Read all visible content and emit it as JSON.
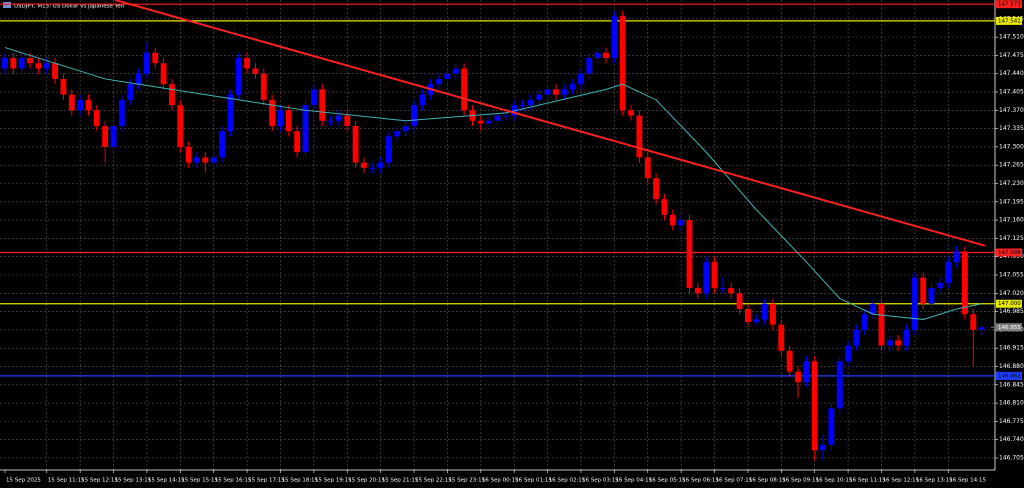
{
  "chart_data": {
    "type": "candlestick",
    "title": "USDJPY, M15: US Dollar vs Japanese Yen",
    "ylim": [
      146.682,
      147.581
    ],
    "xlim": [
      -0.6,
      118.6
    ],
    "grid": true,
    "up_color": "#0000ff",
    "down_color": "#ff0000",
    "yticks": [
      147.545,
      {
        "value": 147.51,
        "label": "147.510"
      },
      147.475,
      {
        "value": 147.44,
        "label": "147.440"
      },
      147.405,
      {
        "value": 147.37,
        "label": "147.370"
      },
      147.335,
      {
        "value": 147.3,
        "label": "147.300"
      },
      147.265,
      {
        "value": 147.23,
        "label": "147.230"
      },
      147.195,
      {
        "value": 147.16,
        "label": "147.160"
      },
      147.125,
      {
        "value": 147.09,
        "label": "147.090"
      },
      147.055,
      {
        "value": 147.02,
        "label": "147.020"
      },
      146.985,
      {
        "value": 146.95,
        "label": "146.950"
      },
      146.915,
      {
        "value": 146.88,
        "label": "146.880"
      },
      146.845,
      {
        "value": 146.81,
        "label": "146.810"
      },
      146.775,
      {
        "value": 146.74,
        "label": "146.740"
      },
      146.705
    ],
    "xticks": [
      {
        "value": 0,
        "label": "15 Sep 2025"
      },
      {
        "value": 5,
        "label": "15 Sep 11:15"
      },
      {
        "value": 9,
        "label": "15 Sep 12:15"
      },
      {
        "value": 13,
        "label": "15 Sep 13:15"
      },
      {
        "value": 17,
        "label": "15 Sep 14:15"
      },
      {
        "value": 21,
        "label": "15 Sep 15:15"
      },
      {
        "value": 25,
        "label": "15 Sep 16:15"
      },
      {
        "value": 29,
        "label": "15 Sep 17:15"
      },
      {
        "value": 33,
        "label": "15 Sep 18:15"
      },
      {
        "value": 37,
        "label": "15 Sep 19:15"
      },
      {
        "value": 41,
        "label": "15 Sep 20:15"
      },
      {
        "value": 45,
        "label": "15 Sep 21:15"
      },
      {
        "value": 49,
        "label": "15 Sep 22:15"
      },
      {
        "value": 53,
        "label": "15 Sep 23:15"
      },
      {
        "value": 57,
        "label": "16 Sep 00:15"
      },
      {
        "value": 61,
        "label": "16 Sep 01:15"
      },
      {
        "value": 65,
        "label": "16 Sep 02:15"
      },
      {
        "value": 69,
        "label": "16 Sep 03:15"
      },
      {
        "value": 73,
        "label": "16 Sep 04:15"
      },
      {
        "value": 77,
        "label": "16 Sep 05:15"
      },
      {
        "value": 81,
        "label": "16 Sep 06:15"
      },
      {
        "value": 85,
        "label": "16 Sep 07:15"
      },
      {
        "value": 89,
        "label": "16 Sep 08:15"
      },
      {
        "value": 93,
        "label": "16 Sep 09:15"
      },
      {
        "value": 97,
        "label": "16 Sep 10:15"
      },
      {
        "value": 101,
        "label": "16 Sep 11:15"
      },
      {
        "value": 105,
        "label": "16 Sep 12:15"
      },
      {
        "value": 109,
        "label": "16 Sep 13:15"
      },
      {
        "value": 113,
        "label": "16 Sep 14:15"
      }
    ],
    "candles": [
      [
        147.45,
        147.48,
        147.44,
        147.47
      ],
      [
        147.47,
        147.48,
        147.44,
        147.45
      ],
      [
        147.45,
        147.48,
        147.44,
        147.47
      ],
      [
        147.47,
        147.48,
        147.45,
        147.46
      ],
      [
        147.46,
        147.47,
        147.44,
        147.45
      ],
      [
        147.45,
        147.47,
        147.44,
        147.46
      ],
      [
        147.46,
        147.47,
        147.42,
        147.43
      ],
      [
        147.43,
        147.44,
        147.39,
        147.4
      ],
      [
        147.4,
        147.41,
        147.36,
        147.37
      ],
      [
        147.37,
        147.4,
        147.36,
        147.39
      ],
      [
        147.39,
        147.4,
        147.36,
        147.37
      ],
      [
        147.37,
        147.38,
        147.33,
        147.34
      ],
      [
        147.34,
        147.35,
        147.27,
        147.3
      ],
      [
        147.3,
        147.35,
        147.29,
        147.34
      ],
      [
        147.34,
        147.4,
        147.33,
        147.39
      ],
      [
        147.39,
        147.43,
        147.38,
        147.42
      ],
      [
        147.42,
        147.45,
        147.41,
        147.44
      ],
      [
        147.44,
        147.5,
        147.43,
        147.48
      ],
      [
        147.48,
        147.49,
        147.45,
        147.46
      ],
      [
        147.46,
        147.47,
        147.41,
        147.42
      ],
      [
        147.42,
        147.43,
        147.37,
        147.38
      ],
      [
        147.38,
        147.39,
        147.29,
        147.3
      ],
      [
        147.3,
        147.31,
        147.26,
        147.27
      ],
      [
        147.27,
        147.29,
        147.26,
        147.28
      ],
      [
        147.28,
        147.29,
        147.25,
        147.27
      ],
      [
        147.27,
        147.29,
        147.26,
        147.28
      ],
      [
        147.28,
        147.34,
        147.27,
        147.33
      ],
      [
        147.33,
        147.41,
        147.32,
        147.4
      ],
      [
        147.4,
        147.48,
        147.39,
        147.47
      ],
      [
        147.47,
        147.48,
        147.44,
        147.45
      ],
      [
        147.45,
        147.46,
        147.43,
        147.44
      ],
      [
        147.44,
        147.45,
        147.38,
        147.39
      ],
      [
        147.39,
        147.4,
        147.33,
        147.34
      ],
      [
        147.34,
        147.38,
        147.33,
        147.37
      ],
      [
        147.37,
        147.38,
        147.32,
        147.33
      ],
      [
        147.33,
        147.34,
        147.28,
        147.29
      ],
      [
        147.29,
        147.39,
        147.28,
        147.38
      ],
      [
        147.38,
        147.42,
        147.37,
        147.41
      ],
      [
        147.41,
        147.42,
        147.34,
        147.35
      ],
      [
        147.35,
        147.36,
        147.34,
        147.35
      ],
      [
        147.35,
        147.37,
        147.34,
        147.36
      ],
      [
        147.36,
        147.37,
        147.33,
        147.34
      ],
      [
        147.34,
        147.35,
        147.26,
        147.27
      ],
      [
        147.27,
        147.28,
        147.25,
        147.26
      ],
      [
        147.26,
        147.27,
        147.25,
        147.26
      ],
      [
        147.26,
        147.28,
        147.25,
        147.27
      ],
      [
        147.27,
        147.33,
        147.26,
        147.32
      ],
      [
        147.32,
        147.34,
        147.31,
        147.33
      ],
      [
        147.33,
        147.35,
        147.32,
        147.34
      ],
      [
        147.34,
        147.39,
        147.33,
        147.38
      ],
      [
        147.38,
        147.41,
        147.37,
        147.4
      ],
      [
        147.4,
        147.43,
        147.39,
        147.42
      ],
      [
        147.42,
        147.44,
        147.41,
        147.43
      ],
      [
        147.43,
        147.45,
        147.42,
        147.44
      ],
      [
        147.44,
        147.46,
        147.43,
        147.45
      ],
      [
        147.45,
        147.46,
        147.36,
        147.37
      ],
      [
        147.37,
        147.38,
        147.34,
        147.35
      ],
      [
        147.35,
        147.36,
        147.33,
        147.345
      ],
      [
        147.345,
        147.36,
        147.34,
        147.35
      ],
      [
        147.35,
        147.37,
        147.34,
        147.36
      ],
      [
        147.36,
        147.37,
        147.35,
        147.36
      ],
      [
        147.36,
        147.39,
        147.35,
        147.38
      ],
      [
        147.38,
        147.39,
        147.37,
        147.38
      ],
      [
        147.38,
        147.4,
        147.37,
        147.39
      ],
      [
        147.39,
        147.41,
        147.38,
        147.4
      ],
      [
        147.4,
        147.42,
        147.39,
        147.41
      ],
      [
        147.41,
        147.42,
        147.39,
        147.4
      ],
      [
        147.4,
        147.42,
        147.39,
        147.41
      ],
      [
        147.41,
        147.43,
        147.4,
        147.42
      ],
      [
        147.42,
        147.45,
        147.41,
        147.44
      ],
      [
        147.44,
        147.48,
        147.43,
        147.47
      ],
      [
        147.47,
        147.49,
        147.46,
        147.48
      ],
      [
        147.48,
        147.49,
        147.46,
        147.47
      ],
      [
        147.47,
        147.56,
        147.46,
        147.55
      ],
      [
        147.55,
        147.56,
        147.36,
        147.37
      ],
      [
        147.37,
        147.38,
        147.35,
        147.36
      ],
      [
        147.36,
        147.37,
        147.27,
        147.28
      ],
      [
        147.28,
        147.29,
        147.23,
        147.24
      ],
      [
        147.24,
        147.25,
        147.19,
        147.2
      ],
      [
        147.2,
        147.21,
        147.16,
        147.17
      ],
      [
        147.17,
        147.18,
        147.14,
        147.15
      ],
      [
        147.15,
        147.17,
        147.14,
        147.16
      ],
      [
        147.16,
        147.17,
        147.02,
        147.03
      ],
      [
        147.03,
        147.04,
        147.01,
        147.02
      ],
      [
        147.02,
        147.09,
        147.01,
        147.08
      ],
      [
        147.08,
        147.09,
        147.02,
        147.03
      ],
      [
        147.03,
        147.05,
        147.02,
        147.03
      ],
      [
        147.03,
        147.04,
        147.01,
        147.02
      ],
      [
        147.02,
        147.03,
        146.98,
        146.99
      ],
      [
        146.99,
        147.0,
        146.955,
        146.965
      ],
      [
        146.965,
        146.98,
        146.96,
        146.97
      ],
      [
        146.97,
        147.01,
        146.96,
        147.0
      ],
      [
        147.0,
        147.01,
        146.95,
        146.96
      ],
      [
        146.96,
        146.97,
        146.9,
        146.91
      ],
      [
        146.91,
        146.92,
        146.86,
        146.87
      ],
      [
        146.87,
        146.88,
        146.82,
        146.85
      ],
      [
        146.85,
        146.9,
        146.84,
        146.89
      ],
      [
        146.89,
        146.9,
        146.7,
        146.72
      ],
      [
        146.72,
        146.75,
        146.7,
        146.73
      ],
      [
        146.73,
        146.81,
        146.72,
        146.8
      ],
      [
        146.8,
        146.9,
        146.79,
        146.89
      ],
      [
        146.89,
        146.93,
        146.88,
        146.92
      ],
      [
        146.92,
        146.96,
        146.91,
        146.95
      ],
      [
        146.95,
        146.99,
        146.94,
        146.98
      ],
      [
        146.98,
        147.01,
        146.97,
        147.0
      ],
      [
        147.0,
        147.01,
        146.91,
        146.92
      ],
      [
        146.92,
        146.94,
        146.91,
        146.93
      ],
      [
        146.93,
        146.94,
        146.91,
        146.92
      ],
      [
        146.92,
        146.96,
        146.91,
        146.95
      ],
      [
        146.95,
        147.06,
        146.94,
        147.05
      ],
      [
        147.05,
        147.06,
        146.99,
        147.0
      ],
      [
        147.0,
        147.04,
        146.99,
        147.03
      ],
      [
        147.03,
        147.05,
        147.02,
        147.04
      ],
      [
        147.04,
        147.09,
        147.03,
        147.08
      ],
      [
        147.08,
        147.11,
        147.07,
        147.1
      ],
      [
        147.1,
        147.11,
        146.97,
        146.98
      ],
      [
        146.98,
        146.99,
        146.88,
        146.95
      ],
      [
        146.95,
        146.96,
        146.94,
        146.955
      ]
    ],
    "moving_average": {
      "color": "#3fb6b6",
      "x": [
        0,
        12,
        24,
        36,
        48,
        60,
        72,
        74,
        78,
        84,
        90,
        96,
        100,
        104,
        110,
        114,
        117
      ],
      "values": [
        147.49,
        147.43,
        147.4,
        147.37,
        147.35,
        147.365,
        147.41,
        147.42,
        147.39,
        147.29,
        147.18,
        147.08,
        147.01,
        146.98,
        146.97,
        146.99,
        147.0
      ]
    },
    "trendline": {
      "color": "#ff2020",
      "x": [
        13.2,
        117.4
      ],
      "values": [
        147.581,
        147.111
      ]
    },
    "levels": [
      {
        "price": 147.573,
        "color": "#ff2020"
      },
      {
        "price": 147.541,
        "color": "#e8e800"
      },
      {
        "price": 147.098,
        "color": "#ff2020"
      },
      {
        "price": 147.0,
        "label": "147.000",
        "color": "#e8e800"
      },
      {
        "price": 146.862,
        "color": "#2040ff"
      }
    ],
    "current_price": {
      "price": 146.955,
      "color": "#808080"
    }
  }
}
